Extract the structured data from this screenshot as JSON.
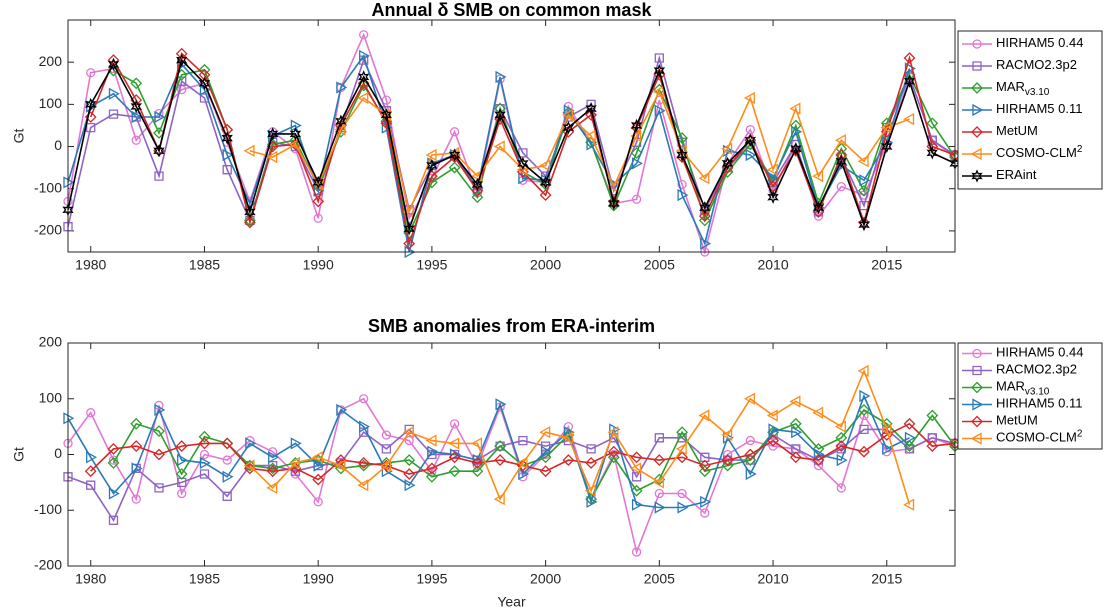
{
  "chart_data": [
    {
      "type": "line",
      "title": "Annual δ SMB on common mask",
      "ylabel": "Gt",
      "x": [
        1979,
        1980,
        1981,
        1982,
        1983,
        1984,
        1985,
        1986,
        1987,
        1988,
        1989,
        1990,
        1991,
        1992,
        1993,
        1994,
        1995,
        1996,
        1997,
        1998,
        1999,
        2000,
        2001,
        2002,
        2003,
        2004,
        2005,
        2006,
        2007,
        2008,
        2009,
        2010,
        2011,
        2012,
        2013,
        2014,
        2015,
        2016,
        2017,
        2018
      ],
      "xlim": [
        1979,
        2018
      ],
      "xticks": [
        1980,
        1985,
        1990,
        1995,
        2000,
        2005,
        2010,
        2015
      ],
      "ylim": [
        -250,
        300
      ],
      "yticks": [
        -200,
        -100,
        0,
        100,
        200
      ],
      "series": [
        {
          "name": "HIRHAM5 0.44",
          "color": "#e377d4",
          "marker": "circle",
          "values": [
            -130,
            175,
            185,
            15,
            78,
            135,
            150,
            10,
            -130,
            35,
            -5,
            -170,
            140,
            265,
            110,
            -170,
            -75,
            35,
            -110,
            160,
            -80,
            -85,
            95,
            10,
            -135,
            -125,
            110,
            -90,
            -250,
            -40,
            40,
            -105,
            5,
            -165,
            -95,
            -115,
            5,
            165,
            15,
            -25
          ]
        },
        {
          "name": "RACMO2.3p2",
          "color": "#8e63c4",
          "marker": "square",
          "values": [
            -190,
            45,
            77,
            70,
            -70,
            155,
            115,
            -55,
            -175,
            10,
            0,
            -105,
            45,
            205,
            85,
            -150,
            -45,
            -20,
            -100,
            90,
            -15,
            -70,
            70,
            100,
            -105,
            10,
            210,
            10,
            -150,
            -50,
            5,
            -85,
            5,
            -155,
            -25,
            -140,
            45,
            165,
            15,
            -20
          ]
        },
        {
          "name": "MAR",
          "name_sub": "v3.10",
          "color": "#2ca02c",
          "marker": "diamond",
          "values": [
            null,
            null,
            180,
            150,
            32,
            170,
            182,
            40,
            -175,
            5,
            15,
            -95,
            35,
            145,
            60,
            -205,
            -85,
            -50,
            -120,
            90,
            -60,
            -90,
            80,
            10,
            -140,
            -15,
            135,
            20,
            -175,
            -60,
            5,
            -80,
            50,
            -135,
            -5,
            -105,
            55,
            170,
            55,
            -25
          ]
        },
        {
          "name": "HIRHAM5 0.11",
          "color": "#2a7ab8",
          "marker": "triangle-right",
          "values": [
            -85,
            95,
            125,
            70,
            70,
            195,
            135,
            -20,
            -135,
            25,
            50,
            -105,
            140,
            215,
            45,
            -250,
            -40,
            -20,
            -100,
            165,
            -75,
            -80,
            85,
            5,
            -90,
            -40,
            85,
            -115,
            -230,
            -10,
            -20,
            -75,
            35,
            -145,
            -45,
            -80,
            10,
            185,
            null,
            null
          ]
        },
        {
          "name": "MetUM",
          "color": "#d62728",
          "marker": "diamond",
          "values": [
            null,
            70,
            205,
            110,
            -10,
            220,
            170,
            40,
            -180,
            0,
            5,
            -130,
            50,
            150,
            55,
            -230,
            -70,
            -25,
            -105,
            65,
            -60,
            -115,
            35,
            75,
            -130,
            45,
            170,
            -25,
            -165,
            -50,
            15,
            -95,
            -10,
            -155,
            -20,
            -180,
            35,
            210,
            0,
            -20
          ]
        },
        {
          "name": "COSMO-CLM",
          "name_sup": "2",
          "color": "#ff8c1a",
          "marker": "triangle-left",
          "values": [
            null,
            null,
            null,
            null,
            null,
            null,
            null,
            null,
            -10,
            -25,
            5,
            -90,
            40,
            115,
            75,
            -155,
            -20,
            -15,
            -70,
            0,
            -55,
            -45,
            75,
            25,
            -95,
            25,
            130,
            -10,
            -75,
            -5,
            115,
            -55,
            90,
            -70,
            15,
            -35,
            45,
            65,
            null,
            null
          ]
        },
        {
          "name": "ERAint",
          "color": "#000000",
          "marker": "hexagram",
          "values": [
            -150,
            100,
            195,
            95,
            -10,
            205,
            150,
            20,
            -155,
            30,
            30,
            -85,
            60,
            165,
            75,
            -195,
            -45,
            -20,
            -90,
            75,
            -40,
            -85,
            45,
            90,
            -135,
            50,
            180,
            -20,
            -145,
            -40,
            15,
            -120,
            -5,
            -145,
            -35,
            -185,
            0,
            155,
            -15,
            -40
          ]
        }
      ]
    },
    {
      "type": "line",
      "title": "SMB anomalies from ERA-interim",
      "ylabel": "Gt",
      "xlabel": "Year",
      "x": [
        1979,
        1980,
        1981,
        1982,
        1983,
        1984,
        1985,
        1986,
        1987,
        1988,
        1989,
        1990,
        1991,
        1992,
        1993,
        1994,
        1995,
        1996,
        1997,
        1998,
        1999,
        2000,
        2001,
        2002,
        2003,
        2004,
        2005,
        2006,
        2007,
        2008,
        2009,
        2010,
        2011,
        2012,
        2013,
        2014,
        2015,
        2016,
        2017,
        2018
      ],
      "xlim": [
        1979,
        2018
      ],
      "xticks": [
        1980,
        1985,
        1990,
        1995,
        2000,
        2005,
        2010,
        2015
      ],
      "ylim": [
        -200,
        200
      ],
      "yticks": [
        -200,
        -100,
        0,
        100,
        200
      ],
      "series": [
        {
          "name": "HIRHAM5 0.44",
          "color": "#e377d4",
          "marker": "circle",
          "values": [
            20,
            75,
            -10,
            -80,
            88,
            -70,
            0,
            -10,
            25,
            5,
            -35,
            -85,
            80,
            100,
            35,
            25,
            -30,
            55,
            -20,
            85,
            -40,
            0,
            50,
            -80,
            0,
            -175,
            -70,
            -70,
            -105,
            0,
            25,
            15,
            10,
            -20,
            -60,
            70,
            5,
            10,
            30,
            15
          ]
        },
        {
          "name": "RACMO2.3p2",
          "color": "#8e63c4",
          "marker": "square",
          "values": [
            -40,
            -55,
            -118,
            -25,
            -60,
            -50,
            -35,
            -75,
            -20,
            -20,
            -30,
            -20,
            -15,
            40,
            10,
            45,
            0,
            0,
            -10,
            15,
            25,
            15,
            25,
            10,
            30,
            -40,
            30,
            30,
            -5,
            -10,
            -10,
            35,
            10,
            -10,
            10,
            45,
            45,
            10,
            30,
            20
          ]
        },
        {
          "name": "MAR",
          "name_sub": "v3.10",
          "color": "#2ca02c",
          "marker": "diamond",
          "values": [
            null,
            null,
            -15,
            55,
            42,
            -35,
            32,
            20,
            -20,
            -25,
            -15,
            -10,
            -25,
            -20,
            -15,
            -10,
            -40,
            -30,
            -30,
            15,
            -20,
            -5,
            35,
            -80,
            -5,
            -65,
            -45,
            40,
            -30,
            -20,
            -10,
            40,
            55,
            10,
            30,
            80,
            55,
            15,
            70,
            15
          ]
        },
        {
          "name": "HIRHAM5 0.11",
          "color": "#2a7ab8",
          "marker": "triangle-right",
          "values": [
            65,
            -5,
            -70,
            -25,
            80,
            -10,
            -15,
            -40,
            20,
            -5,
            20,
            -20,
            80,
            50,
            -30,
            -55,
            5,
            0,
            -10,
            90,
            -35,
            5,
            40,
            -85,
            45,
            -90,
            -95,
            -95,
            -85,
            30,
            -35,
            45,
            40,
            0,
            -10,
            105,
            10,
            30,
            null,
            null
          ]
        },
        {
          "name": "MetUM",
          "color": "#d62728",
          "marker": "diamond",
          "values": [
            null,
            -30,
            10,
            15,
            0,
            15,
            20,
            20,
            -25,
            -30,
            -25,
            -45,
            -10,
            -15,
            -20,
            -35,
            -25,
            -5,
            -15,
            -10,
            -20,
            -30,
            -10,
            -15,
            5,
            -5,
            -10,
            -5,
            -20,
            -10,
            0,
            25,
            -5,
            -10,
            15,
            5,
            35,
            55,
            15,
            20
          ]
        },
        {
          "name": "COSMO-CLM",
          "name_sup": "2",
          "color": "#ff8c1a",
          "marker": "triangle-left",
          "values": [
            null,
            null,
            null,
            null,
            null,
            null,
            null,
            null,
            -20,
            -60,
            -15,
            -5,
            -20,
            -55,
            -20,
            40,
            25,
            20,
            20,
            -80,
            -15,
            40,
            30,
            -65,
            40,
            -25,
            -50,
            10,
            70,
            35,
            100,
            70,
            95,
            75,
            50,
            150,
            45,
            -90,
            null,
            null
          ]
        }
      ]
    }
  ]
}
